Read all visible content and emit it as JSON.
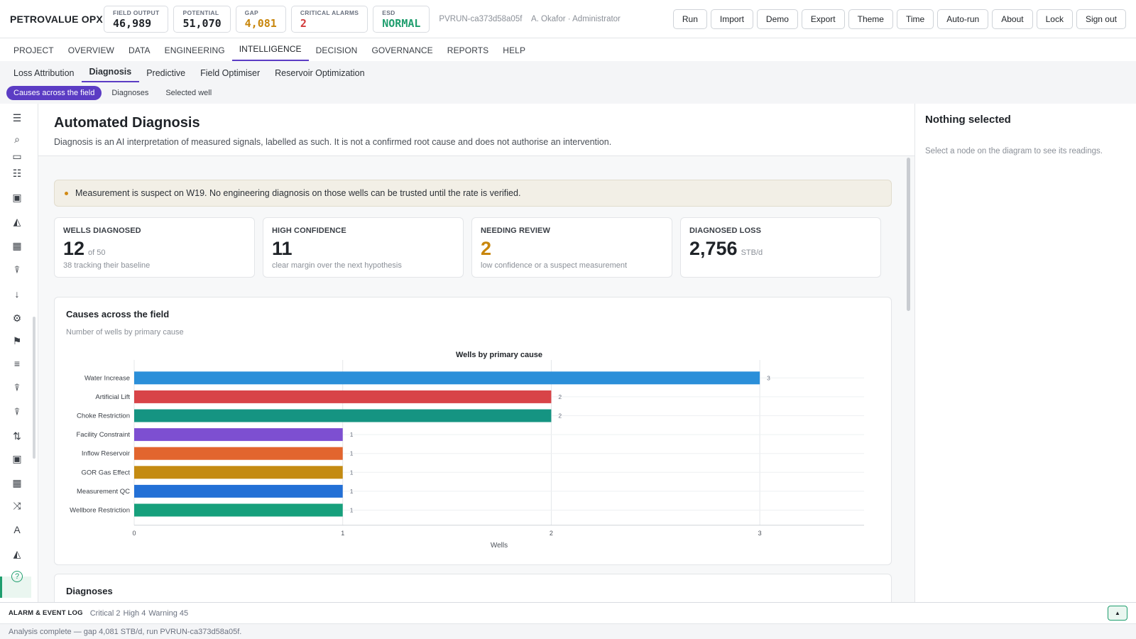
{
  "app": {
    "brand": "PETROVALUE OPX"
  },
  "kpis": [
    {
      "label": "FIELD OUTPUT",
      "value": "46,989",
      "color": "#1f2328"
    },
    {
      "label": "POTENTIAL",
      "value": "51,070",
      "color": "#1f2328"
    },
    {
      "label": "GAP",
      "value": "4,081",
      "color": "#c8860c"
    },
    {
      "label": "CRITICAL ALARMS",
      "value": "2",
      "color": "#d23b3b"
    },
    {
      "label": "ESD",
      "value": "NORMAL",
      "color": "#1f9e6e"
    }
  ],
  "run": {
    "id": "PVRUN-ca373d58a05f",
    "user": "A. Okafor · Administrator"
  },
  "toolbar": [
    "Run",
    "Import",
    "Demo",
    "Export",
    "Theme",
    "Time",
    "Auto-run",
    "About",
    "Lock",
    "Sign out"
  ],
  "nav": {
    "primary": [
      "PROJECT",
      "OVERVIEW",
      "DATA",
      "ENGINEERING",
      "INTELLIGENCE",
      "DECISION",
      "GOVERNANCE",
      "REPORTS",
      "HELP"
    ],
    "primary_active": "INTELLIGENCE",
    "secondary": [
      "Loss Attribution",
      "Diagnosis",
      "Predictive",
      "Field Optimiser",
      "Reservoir Optimization"
    ],
    "secondary_active": "Diagnosis",
    "tertiary": [
      "Causes across the field",
      "Diagnoses",
      "Selected well"
    ],
    "tertiary_active": "Causes across the field"
  },
  "rail_icons": [
    "menu-icon",
    "search-icon",
    "ruler-icon",
    "checklist-icon",
    "image-icon",
    "area-chart-icon",
    "table-icon",
    "thermometer-icon",
    "arrow-down-icon",
    "gears-icon",
    "flag-icon",
    "list-icon",
    "thermometer-icon",
    "thermometer-icon",
    "swap-vertical-icon",
    "image-icon",
    "table-icon",
    "shuffle-icon",
    "translate-icon",
    "area-chart-icon",
    "help-icon"
  ],
  "page": {
    "title": "Automated Diagnosis",
    "subtitle": "Diagnosis is an AI interpretation of measured signals, labelled as such. It is not a confirmed root cause and does not authorise an intervention."
  },
  "warning": "Measurement is suspect on W19. No engineering diagnosis on those wells can be trusted until the rate is verified.",
  "cards": [
    {
      "label": "WELLS DIAGNOSED",
      "value": "12",
      "unit": "of 50",
      "sub": "38 tracking their baseline",
      "color": "#1f2328"
    },
    {
      "label": "HIGH CONFIDENCE",
      "value": "11",
      "unit": "",
      "sub": "clear margin over the next hypothesis",
      "color": "#1f2328"
    },
    {
      "label": "NEEDING REVIEW",
      "value": "2",
      "unit": "",
      "sub": "low confidence or a suspect measurement",
      "color": "#c8860c"
    },
    {
      "label": "DIAGNOSED LOSS",
      "value": "2,756",
      "unit": "STB/d",
      "sub": "",
      "color": "#1f2328"
    }
  ],
  "chart_section": {
    "title": "Causes across the field",
    "subtitle": "Number of wells by primary cause"
  },
  "chart_data": {
    "type": "bar",
    "orientation": "horizontal",
    "title": "Wells by primary cause",
    "xlabel": "Wells",
    "ylabel": "",
    "xlim": [
      0,
      3.5
    ],
    "xticks": [
      0,
      1,
      2,
      3
    ],
    "grid": true,
    "categories": [
      "Water Increase",
      "Artificial Lift",
      "Choke Restriction",
      "Facility Constraint",
      "Inflow Reservoir",
      "GOR Gas Effect",
      "Measurement QC",
      "Wellbore Restriction"
    ],
    "values": [
      3,
      2,
      2,
      1,
      1,
      1,
      1,
      1
    ],
    "colors": [
      "#2b8fd9",
      "#d84448",
      "#159482",
      "#7d4fd1",
      "#e2652e",
      "#c48b12",
      "#2370d6",
      "#17a07c"
    ]
  },
  "diagnoses_section": {
    "title": "Diagnoses"
  },
  "side": {
    "title": "Nothing selected",
    "hint": "Select a node on the diagram to see its readings."
  },
  "log": {
    "title": "ALARM & EVENT LOG",
    "items": [
      "Critical 2",
      "High 4",
      "Warning 45"
    ],
    "toggle": "▲"
  },
  "status": "Analysis complete — gap 4,081 STB/d, run PVRUN-ca373d58a05f."
}
